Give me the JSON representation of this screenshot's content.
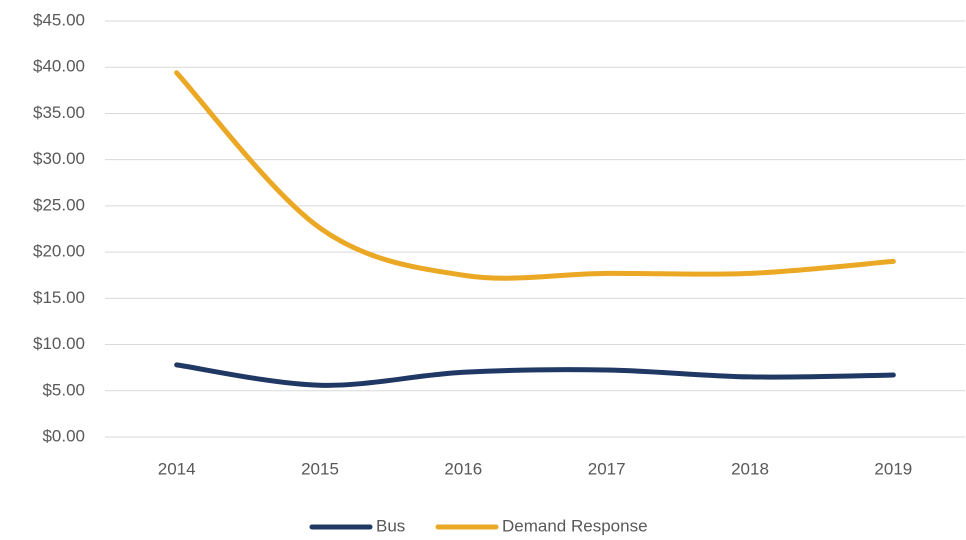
{
  "chart_data": {
    "type": "line",
    "categories": [
      "2014",
      "2015",
      "2016",
      "2017",
      "2018",
      "2019"
    ],
    "series": [
      {
        "name": "Bus",
        "color": "#203864",
        "values": [
          7.8,
          5.6,
          7.0,
          7.25,
          6.5,
          6.7
        ]
      },
      {
        "name": "Demand Response",
        "color": "#eaa825",
        "values": [
          39.4,
          22.6,
          17.5,
          17.7,
          17.7,
          19.0
        ]
      }
    ],
    "ylim": [
      0,
      45
    ],
    "yticks": [
      {
        "value": 0,
        "label": "$0.00"
      },
      {
        "value": 5,
        "label": "$5.00"
      },
      {
        "value": 10,
        "label": "$10.00"
      },
      {
        "value": 15,
        "label": "$15.00"
      },
      {
        "value": 20,
        "label": "$20.00"
      },
      {
        "value": 25,
        "label": "$25.00"
      },
      {
        "value": 30,
        "label": "$30.00"
      },
      {
        "value": 35,
        "label": "$35.00"
      },
      {
        "value": 40,
        "label": "$40.00"
      },
      {
        "value": 45,
        "label": "$45.00"
      }
    ],
    "grid": true,
    "smooth": true,
    "legend": "bottom"
  }
}
